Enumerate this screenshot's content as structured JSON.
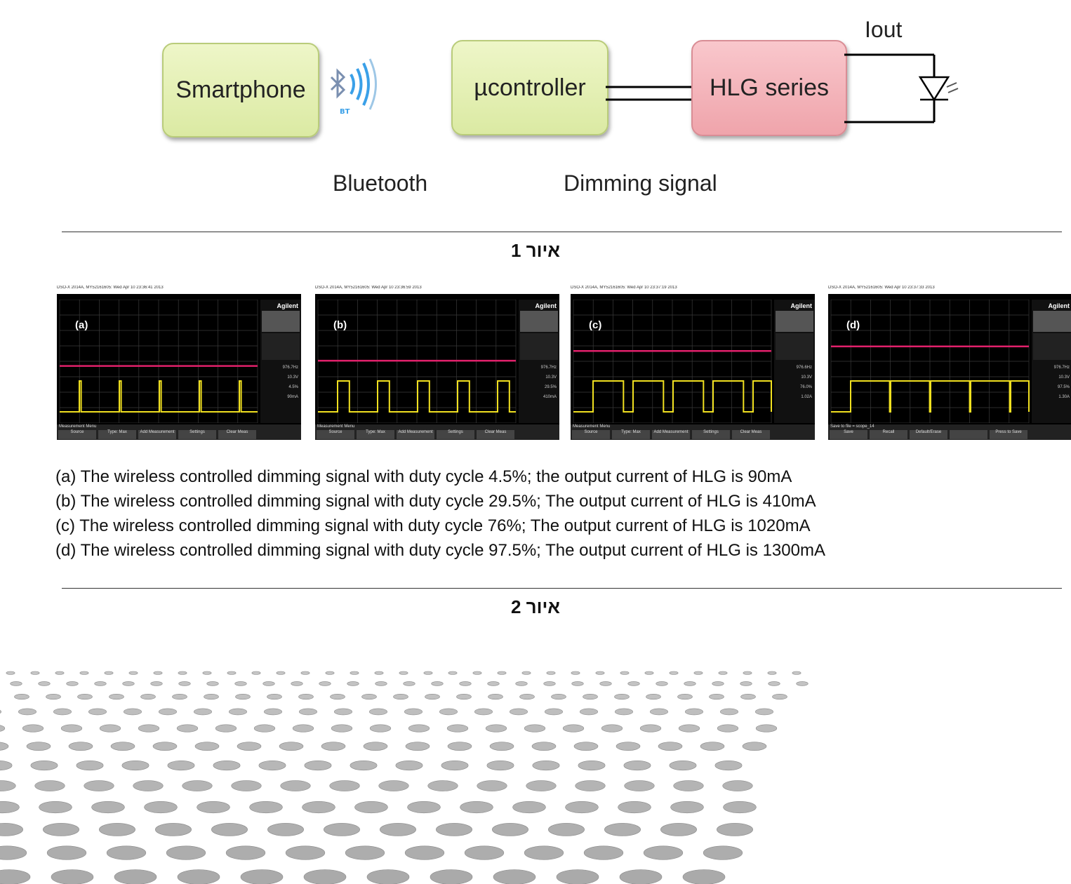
{
  "figure1": {
    "smartphone_label": "Smartphone",
    "controller_label": "µcontroller",
    "hlg_label": "HLG series",
    "iout_label": "Iout",
    "bluetooth_caption": "Bluetooth",
    "dimming_caption": "Dimming signal",
    "bt_icon_text": "BT",
    "title": "איור 1"
  },
  "figure2": {
    "title": "איור 2",
    "scopes": [
      {
        "label": "(a)",
        "header": "DSO-X 2014A, MY52161605: Wed Apr 10 23:36:41 2013",
        "duty_cycle_pct": 4.5,
        "side_values": [
          "976.7Hz",
          "10.3V",
          "4.5%",
          "90mA"
        ],
        "menu_title": "Measurement Menu",
        "menu_buttons": [
          "Source",
          "Type: Max",
          "Add Measurement",
          "Settings",
          "Clear Meas"
        ]
      },
      {
        "label": "(b)",
        "header": "DSO-X 2014A, MY52161605: Wed Apr 10 23:36:59 2013",
        "duty_cycle_pct": 29.5,
        "side_values": [
          "976.7Hz",
          "10.3V",
          "29.5%",
          "410mA"
        ],
        "menu_title": "Measurement Menu",
        "menu_buttons": [
          "Source",
          "Type: Max",
          "Add Measurement",
          "Settings",
          "Clear Meas"
        ]
      },
      {
        "label": "(c)",
        "header": "DSO-X 2014A, MY52161605: Wed Apr 10 23:37:19 2013",
        "duty_cycle_pct": 76,
        "side_values": [
          "976.6Hz",
          "10.3V",
          "76.0%",
          "1.02A"
        ],
        "menu_title": "Measurement Menu",
        "menu_buttons": [
          "Source",
          "Type: Max",
          "Add Measurement",
          "Settings",
          "Clear Meas"
        ]
      },
      {
        "label": "(d)",
        "header": "DSO-X 2014A, MY52161605: Wed Apr 10 23:37:33 2013",
        "duty_cycle_pct": 97.5,
        "side_values": [
          "976.7Hz",
          "10.3V",
          "97.5%",
          "1.30A"
        ],
        "menu_title": "Save to file = scope_14",
        "menu_buttons": [
          "Save",
          "Recall",
          "Default/Erase",
          "",
          "Press to Save"
        ]
      }
    ],
    "brand": "Agilent",
    "captions": [
      "(a) The wireless controlled dimming signal with duty cycle 4.5%; the output current of HLG is 90mA",
      "(b) The wireless controlled dimming signal with duty cycle 29.5%; The output current of HLG is 410mA",
      "(c) The wireless controlled dimming signal with duty cycle 76%; The output current of HLG is 1020mA",
      "(d) The wireless controlled dimming signal with duty cycle 97.5%; The output current of HLG is 1300mA"
    ]
  },
  "colors": {
    "pwm_trace": "#f0e020",
    "current_trace": "#e0206a",
    "grid": "#3a3a3a"
  }
}
